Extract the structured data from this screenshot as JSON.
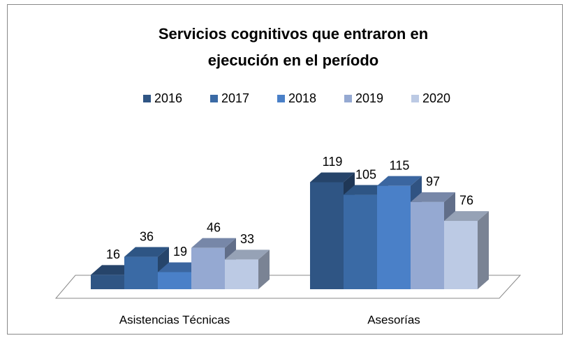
{
  "chart_data": {
    "type": "bar3d",
    "title": [
      "Servicios cognitivos que entraron en",
      "ejecución en el período"
    ],
    "categories": [
      "Asistencias Técnicas",
      "Asesorías"
    ],
    "series": [
      {
        "name": "2016",
        "color": "#2f5584",
        "values": [
          16,
          119
        ]
      },
      {
        "name": "2017",
        "color": "#3a6aa5",
        "values": [
          36,
          105
        ]
      },
      {
        "name": "2018",
        "color": "#4a80c8",
        "values": [
          19,
          115
        ]
      },
      {
        "name": "2019",
        "color": "#95a9d2",
        "values": [
          46,
          97
        ]
      },
      {
        "name": "2020",
        "color": "#bccae4",
        "values": [
          33,
          76
        ]
      }
    ],
    "legend": "top"
  }
}
